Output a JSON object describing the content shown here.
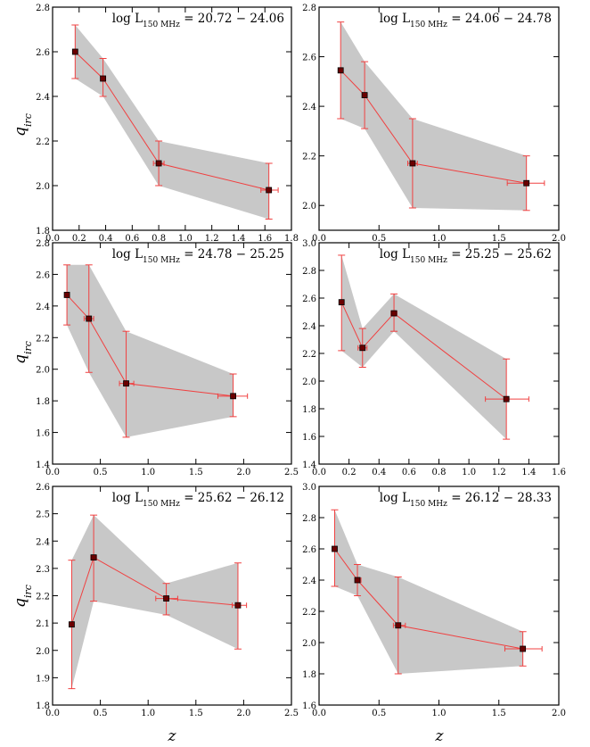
{
  "figure": {
    "ylabel": "q_irc",
    "xlabel": "z"
  },
  "chart_data": [
    {
      "type": "scatter",
      "title_prefix": "log L",
      "title_sub": "150 MHz",
      "title_range": " = 20.72 − 24.06",
      "xlim": [
        0.0,
        1.8
      ],
      "ylim": [
        1.8,
        2.8
      ],
      "xticks": [
        "0.0",
        "0.2",
        "0.4",
        "0.6",
        "0.8",
        "1.0",
        "1.2",
        "1.4",
        "1.6",
        "1.8"
      ],
      "xtick_values": [
        0.0,
        0.2,
        0.4,
        0.6,
        0.8,
        1.0,
        1.2,
        1.4,
        1.6,
        1.8
      ],
      "yticks": [
        "1.8",
        "2.0",
        "2.2",
        "2.4",
        "2.6",
        "2.8"
      ],
      "ytick_values": [
        1.8,
        2.0,
        2.2,
        2.4,
        2.6,
        2.8
      ],
      "points": [
        {
          "x": 0.17,
          "y": 2.6,
          "ylo": 2.48,
          "yhi": 2.72,
          "xlo": 0.16,
          "xhi": 0.18
        },
        {
          "x": 0.38,
          "y": 2.48,
          "ylo": 2.4,
          "yhi": 2.57,
          "xlo": 0.37,
          "xhi": 0.4
        },
        {
          "x": 0.8,
          "y": 2.1,
          "ylo": 2.0,
          "yhi": 2.2,
          "xlo": 0.76,
          "xhi": 0.84
        },
        {
          "x": 1.63,
          "y": 1.98,
          "ylo": 1.85,
          "yhi": 2.1,
          "xlo": 1.57,
          "xhi": 1.7
        }
      ],
      "band_upper": [
        2.72,
        2.57,
        2.2,
        2.1
      ],
      "band_lower": [
        2.48,
        2.4,
        2.0,
        1.85
      ]
    },
    {
      "type": "scatter",
      "title_prefix": "log L",
      "title_sub": "150 MHz",
      "title_range": " = 24.06 − 24.78",
      "xlim": [
        0.0,
        2.0
      ],
      "ylim": [
        1.9,
        2.8
      ],
      "xticks": [
        "0.0",
        "0.5",
        "1.0",
        "1.5",
        "2.0"
      ],
      "xtick_values": [
        0.0,
        0.5,
        1.0,
        1.5,
        2.0
      ],
      "yticks": [
        "2.0",
        "2.2",
        "2.4",
        "2.6",
        "2.8"
      ],
      "ytick_values": [
        2.0,
        2.2,
        2.4,
        2.6,
        2.8
      ],
      "points": [
        {
          "x": 0.18,
          "y": 2.545,
          "ylo": 2.35,
          "yhi": 2.74,
          "xlo": 0.17,
          "xhi": 0.19
        },
        {
          "x": 0.38,
          "y": 2.445,
          "ylo": 2.31,
          "yhi": 2.58,
          "xlo": 0.36,
          "xhi": 0.4
        },
        {
          "x": 0.78,
          "y": 2.17,
          "ylo": 1.99,
          "yhi": 2.35,
          "xlo": 0.74,
          "xhi": 0.82
        },
        {
          "x": 1.73,
          "y": 2.09,
          "ylo": 1.98,
          "yhi": 2.2,
          "xlo": 1.57,
          "xhi": 1.88
        }
      ],
      "band_upper": [
        2.74,
        2.58,
        2.35,
        2.2
      ],
      "band_lower": [
        2.35,
        2.31,
        1.99,
        1.98
      ]
    },
    {
      "type": "scatter",
      "title_prefix": "log L",
      "title_sub": "150 MHz",
      "title_range": " = 24.78 − 25.25",
      "xlim": [
        0.0,
        2.5
      ],
      "ylim": [
        1.4,
        2.8
      ],
      "xticks": [
        "0.0",
        "0.5",
        "1.0",
        "1.5",
        "2.0",
        "2.5"
      ],
      "xtick_values": [
        0.0,
        0.5,
        1.0,
        1.5,
        2.0,
        2.5
      ],
      "yticks": [
        "1.4",
        "1.6",
        "1.8",
        "2.0",
        "2.2",
        "2.4",
        "2.6",
        "2.8"
      ],
      "ytick_values": [
        1.4,
        1.6,
        1.8,
        2.0,
        2.2,
        2.4,
        2.6,
        2.8
      ],
      "points": [
        {
          "x": 0.15,
          "y": 2.47,
          "ylo": 2.28,
          "yhi": 2.66,
          "xlo": 0.14,
          "xhi": 0.16
        },
        {
          "x": 0.38,
          "y": 2.32,
          "ylo": 1.98,
          "yhi": 2.66,
          "xlo": 0.33,
          "xhi": 0.43
        },
        {
          "x": 0.77,
          "y": 1.91,
          "ylo": 1.57,
          "yhi": 2.24,
          "xlo": 0.7,
          "xhi": 0.85
        },
        {
          "x": 1.89,
          "y": 1.83,
          "ylo": 1.7,
          "yhi": 1.97,
          "xlo": 1.73,
          "xhi": 2.04
        }
      ],
      "band_upper": [
        2.66,
        2.66,
        2.24,
        1.97
      ],
      "band_lower": [
        2.28,
        1.98,
        1.57,
        1.7
      ]
    },
    {
      "type": "scatter",
      "title_prefix": "log L",
      "title_sub": "150 MHz",
      "title_range": " = 25.25 − 25.62",
      "xlim": [
        0.0,
        1.6
      ],
      "ylim": [
        1.4,
        3.0
      ],
      "xticks": [
        "0.0",
        "0.2",
        "0.4",
        "0.6",
        "0.8",
        "1.0",
        "1.2",
        "1.4",
        "1.6"
      ],
      "xtick_values": [
        0.0,
        0.2,
        0.4,
        0.6,
        0.8,
        1.0,
        1.2,
        1.4,
        1.6
      ],
      "yticks": [
        "1.4",
        "1.6",
        "1.8",
        "2.0",
        "2.2",
        "2.4",
        "2.6",
        "2.8",
        "3.0"
      ],
      "ytick_values": [
        1.4,
        1.6,
        1.8,
        2.0,
        2.2,
        2.4,
        2.6,
        2.8,
        3.0
      ],
      "points": [
        {
          "x": 0.15,
          "y": 2.57,
          "ylo": 2.22,
          "yhi": 2.91,
          "xlo": 0.14,
          "xhi": 0.16
        },
        {
          "x": 0.29,
          "y": 2.24,
          "ylo": 2.1,
          "yhi": 2.38,
          "xlo": 0.26,
          "xhi": 0.32
        },
        {
          "x": 0.5,
          "y": 2.49,
          "ylo": 2.36,
          "yhi": 2.63,
          "xlo": 0.48,
          "xhi": 0.52
        },
        {
          "x": 1.25,
          "y": 1.87,
          "ylo": 1.58,
          "yhi": 2.16,
          "xlo": 1.11,
          "xhi": 1.4
        }
      ],
      "band_upper": [
        2.91,
        2.38,
        2.63,
        2.16
      ],
      "band_lower": [
        2.22,
        2.1,
        2.36,
        1.58
      ]
    },
    {
      "type": "scatter",
      "title_prefix": "log L",
      "title_sub": "150 MHz",
      "title_range": " = 25.62 − 26.12",
      "xlim": [
        0.0,
        2.5
      ],
      "ylim": [
        1.8,
        2.6
      ],
      "xticks": [
        "0.0",
        "0.5",
        "1.0",
        "1.5",
        "2.0",
        "2.5"
      ],
      "xtick_values": [
        0.0,
        0.5,
        1.0,
        1.5,
        2.0,
        2.5
      ],
      "yticks": [
        "1.8",
        "1.9",
        "2.0",
        "2.1",
        "2.2",
        "2.3",
        "2.4",
        "2.5",
        "2.6"
      ],
      "ytick_values": [
        1.8,
        1.9,
        2.0,
        2.1,
        2.2,
        2.3,
        2.4,
        2.5,
        2.6
      ],
      "points": [
        {
          "x": 0.2,
          "y": 2.095,
          "ylo": 1.86,
          "yhi": 2.33,
          "xlo": 0.19,
          "xhi": 0.21
        },
        {
          "x": 0.43,
          "y": 2.34,
          "ylo": 2.18,
          "yhi": 2.495,
          "xlo": 0.4,
          "xhi": 0.46
        },
        {
          "x": 1.19,
          "y": 2.19,
          "ylo": 2.13,
          "yhi": 2.245,
          "xlo": 1.08,
          "xhi": 1.31
        },
        {
          "x": 1.94,
          "y": 2.165,
          "ylo": 2.005,
          "yhi": 2.32,
          "xlo": 1.88,
          "xhi": 2.03
        }
      ],
      "band_upper": [
        2.33,
        2.495,
        2.245,
        2.32
      ],
      "band_lower": [
        1.86,
        2.18,
        2.13,
        2.005
      ]
    },
    {
      "type": "scatter",
      "title_prefix": "log L",
      "title_sub": "150 MHz",
      "title_range": " = 26.12 − 28.33",
      "xlim": [
        0.0,
        2.0
      ],
      "ylim": [
        1.6,
        3.0
      ],
      "xticks": [
        "0.0",
        "0.5",
        "1.0",
        "1.5",
        "2.0"
      ],
      "xtick_values": [
        0.0,
        0.5,
        1.0,
        1.5,
        2.0
      ],
      "yticks": [
        "1.6",
        "1.8",
        "2.0",
        "2.2",
        "2.4",
        "2.6",
        "2.8",
        "3.0"
      ],
      "ytick_values": [
        1.6,
        1.8,
        2.0,
        2.2,
        2.4,
        2.6,
        2.8,
        3.0
      ],
      "points": [
        {
          "x": 0.13,
          "y": 2.6,
          "ylo": 2.36,
          "yhi": 2.85,
          "xlo": 0.12,
          "xhi": 0.14
        },
        {
          "x": 0.32,
          "y": 2.4,
          "ylo": 2.3,
          "yhi": 2.5,
          "xlo": 0.3,
          "xhi": 0.35
        },
        {
          "x": 0.66,
          "y": 2.11,
          "ylo": 1.8,
          "yhi": 2.42,
          "xlo": 0.62,
          "xhi": 0.72
        },
        {
          "x": 1.7,
          "y": 1.96,
          "ylo": 1.85,
          "yhi": 2.07,
          "xlo": 1.55,
          "xhi": 1.86
        }
      ],
      "band_upper": [
        2.85,
        2.5,
        2.42,
        2.07
      ],
      "band_lower": [
        2.36,
        2.3,
        1.8,
        1.85
      ]
    }
  ]
}
